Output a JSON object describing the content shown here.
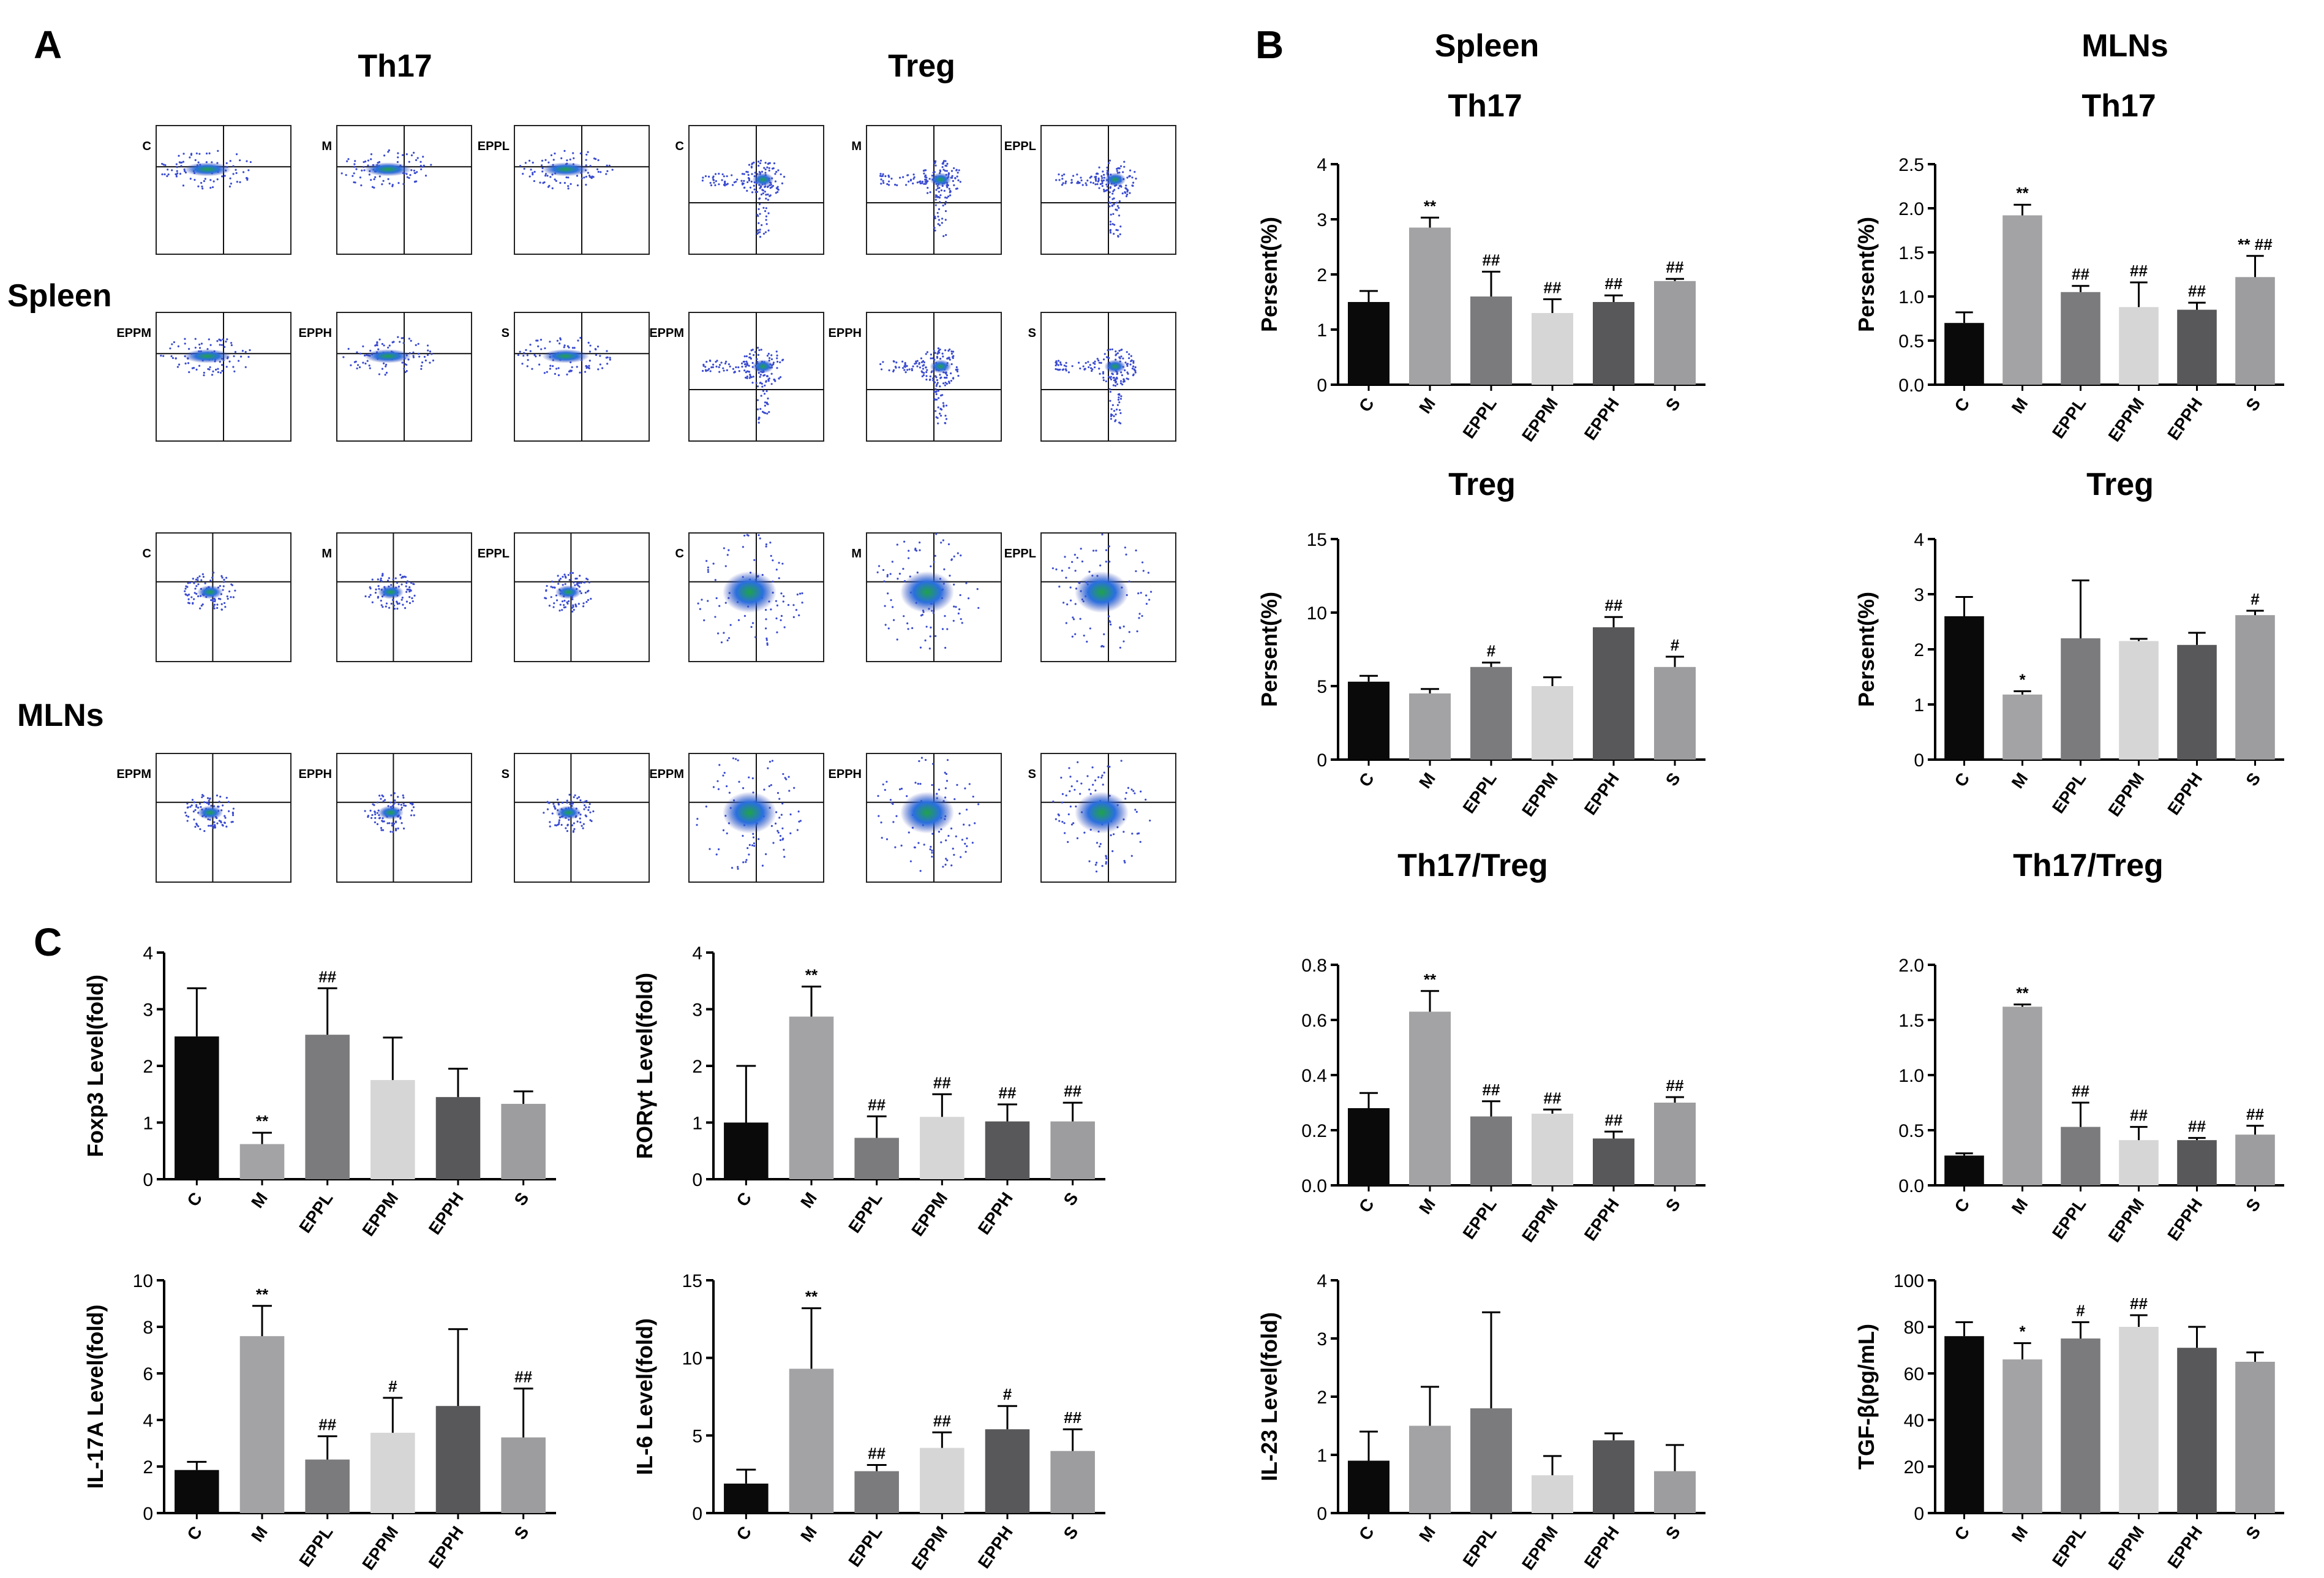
{
  "panel_labels": {
    "a": "A",
    "b": "B",
    "c": "C"
  },
  "panelA": {
    "th17_heading": "Th17",
    "treg_heading": "Treg",
    "spleen_label": "Spleen",
    "mlns_label": "MLNs"
  },
  "panelB": {
    "spleen_heading": "Spleen",
    "mlns_heading": "MLNs"
  },
  "flow_plots": [
    {
      "label": "C"
    },
    {
      "label": "M"
    },
    {
      "label": "EPPL"
    },
    {
      "label": "C"
    },
    {
      "label": "M"
    },
    {
      "label": "EPPL"
    },
    {
      "label": "EPPM"
    },
    {
      "label": "EPPH"
    },
    {
      "label": "S"
    },
    {
      "label": "EPPM"
    },
    {
      "label": "EPPH"
    },
    {
      "label": "S"
    },
    {
      "label": "C"
    },
    {
      "label": "M"
    },
    {
      "label": "EPPL"
    },
    {
      "label": "C"
    },
    {
      "label": "M"
    },
    {
      "label": "EPPL"
    },
    {
      "label": "EPPM"
    },
    {
      "label": "EPPH"
    },
    {
      "label": "S"
    },
    {
      "label": "EPPM"
    },
    {
      "label": "EPPH"
    },
    {
      "label": "S"
    }
  ],
  "colors": {
    "C": "#0a0a0a",
    "M": "#a3a3a5",
    "EPPL": "#7b7b7d",
    "EPPM": "#d6d6d6",
    "EPPH": "#58585a",
    "S": "#9d9d9f"
  },
  "chart_data": [
    {
      "type": "bar",
      "title": "Th17",
      "ylabel": "Persent(%)",
      "ylim": [
        0,
        4
      ],
      "yticks": [
        "0",
        "1",
        "2",
        "3",
        "4"
      ],
      "categories": [
        "C",
        "M",
        "EPPL",
        "EPPM",
        "EPPH",
        "S"
      ],
      "values": [
        1.5,
        2.85,
        1.6,
        1.3,
        1.5,
        1.88
      ],
      "errors": [
        0.2,
        0.18,
        0.45,
        0.25,
        0.12,
        0.04
      ],
      "annotations": [
        "",
        "**",
        "##",
        "##",
        "##",
        "##"
      ]
    },
    {
      "type": "bar",
      "title": "Th17",
      "ylabel": "Persent(%)",
      "ylim": [
        0,
        2.5
      ],
      "yticks": [
        "0.0",
        "0.5",
        "1.0",
        "1.5",
        "2.0",
        "2.5"
      ],
      "categories": [
        "C",
        "M",
        "EPPL",
        "EPPM",
        "EPPH",
        "S"
      ],
      "values": [
        0.7,
        1.92,
        1.05,
        0.88,
        0.85,
        1.22
      ],
      "errors": [
        0.12,
        0.12,
        0.07,
        0.28,
        0.08,
        0.24
      ],
      "annotations": [
        "",
        "**",
        "##",
        "##",
        "##",
        "** ##"
      ]
    },
    {
      "type": "bar",
      "title": "Treg",
      "ylabel": "Persent(%)",
      "ylim": [
        0,
        15
      ],
      "yticks": [
        "0",
        "5",
        "10",
        "15"
      ],
      "categories": [
        "C",
        "M",
        "EPPL",
        "EPPM",
        "EPPH",
        "S"
      ],
      "values": [
        5.3,
        4.5,
        6.3,
        5.0,
        9.0,
        6.3
      ],
      "errors": [
        0.4,
        0.3,
        0.3,
        0.6,
        0.7,
        0.7
      ],
      "annotations": [
        "",
        "",
        "#",
        "",
        "##",
        "#"
      ]
    },
    {
      "type": "bar",
      "title": "Treg",
      "ylabel": "Persent(%)",
      "ylim": [
        0,
        4
      ],
      "yticks": [
        "0",
        "1",
        "2",
        "3",
        "4"
      ],
      "categories": [
        "C",
        "M",
        "EPPL",
        "EPPM",
        "EPPH",
        "S"
      ],
      "values": [
        2.6,
        1.18,
        2.2,
        2.15,
        2.08,
        2.62
      ],
      "errors": [
        0.35,
        0.06,
        1.05,
        0.04,
        0.22,
        0.08
      ],
      "annotations": [
        "",
        "*",
        "",
        "",
        "",
        "#"
      ]
    },
    {
      "type": "bar",
      "title": "Th17/Treg",
      "ylabel": "",
      "ylim": [
        0,
        0.8
      ],
      "yticks": [
        "0.0",
        "0.2",
        "0.4",
        "0.6",
        "0.8"
      ],
      "categories": [
        "C",
        "M",
        "EPPL",
        "EPPM",
        "EPPH",
        "S"
      ],
      "values": [
        0.28,
        0.63,
        0.25,
        0.26,
        0.17,
        0.3
      ],
      "errors": [
        0.055,
        0.075,
        0.055,
        0.015,
        0.025,
        0.02
      ],
      "annotations": [
        "",
        "**",
        "##",
        "##",
        "##",
        "##"
      ]
    },
    {
      "type": "bar",
      "title": "Th17/Treg",
      "ylabel": "",
      "ylim": [
        0,
        2.0
      ],
      "yticks": [
        "0.0",
        "0.5",
        "1.0",
        "1.5",
        "2.0"
      ],
      "categories": [
        "C",
        "M",
        "EPPL",
        "EPPM",
        "EPPH",
        "S"
      ],
      "values": [
        0.27,
        1.62,
        0.53,
        0.41,
        0.41,
        0.46
      ],
      "errors": [
        0.02,
        0.02,
        0.22,
        0.12,
        0.02,
        0.08
      ],
      "annotations": [
        "",
        "**",
        "##",
        "##",
        "##",
        "##"
      ]
    },
    {
      "type": "bar",
      "title": "",
      "ylabel": "Foxp3 Level(fold)",
      "ylim": [
        0,
        4
      ],
      "yticks": [
        "0",
        "1",
        "2",
        "3",
        "4"
      ],
      "categories": [
        "C",
        "M",
        "EPPL",
        "EPPM",
        "EPPH",
        "S"
      ],
      "values": [
        2.52,
        0.62,
        2.55,
        1.75,
        1.45,
        1.33
      ],
      "errors": [
        0.85,
        0.2,
        0.82,
        0.75,
        0.5,
        0.22
      ],
      "annotations": [
        "",
        "**",
        "##",
        "",
        "",
        ""
      ]
    },
    {
      "type": "bar",
      "title": "",
      "ylabel": "RORγt Level(fold)",
      "ylim": [
        0,
        4
      ],
      "yticks": [
        "0",
        "1",
        "2",
        "3",
        "4"
      ],
      "categories": [
        "C",
        "M",
        "EPPL",
        "EPPM",
        "EPPH",
        "S"
      ],
      "values": [
        1.0,
        2.87,
        0.73,
        1.1,
        1.02,
        1.02
      ],
      "errors": [
        1.0,
        0.53,
        0.38,
        0.4,
        0.3,
        0.33
      ],
      "annotations": [
        "",
        "**",
        "##",
        "##",
        "##",
        "##"
      ]
    },
    {
      "type": "bar",
      "title": "",
      "ylabel": "IL-17A Level(fold)",
      "ylim": [
        0,
        10
      ],
      "yticks": [
        "0",
        "2",
        "4",
        "6",
        "8",
        "10"
      ],
      "categories": [
        "C",
        "M",
        "EPPL",
        "EPPM",
        "EPPH",
        "S"
      ],
      "values": [
        1.85,
        7.6,
        2.3,
        3.45,
        4.6,
        3.25
      ],
      "errors": [
        0.35,
        1.3,
        1.0,
        1.5,
        3.3,
        2.1
      ],
      "annotations": [
        "",
        "**",
        "##",
        "#",
        "",
        "##"
      ]
    },
    {
      "type": "bar",
      "title": "",
      "ylabel": "IL-6 Level(fold)",
      "ylim": [
        0,
        15
      ],
      "yticks": [
        "0",
        "5",
        "10",
        "15"
      ],
      "categories": [
        "C",
        "M",
        "EPPL",
        "EPPM",
        "EPPH",
        "S"
      ],
      "values": [
        1.9,
        9.3,
        2.7,
        4.2,
        5.4,
        4.0
      ],
      "errors": [
        0.9,
        3.9,
        0.4,
        1.0,
        1.5,
        1.4
      ],
      "annotations": [
        "",
        "**",
        "##",
        "##",
        "#",
        "##"
      ]
    },
    {
      "type": "bar",
      "title": "",
      "ylabel": "IL-23 Level(fold)",
      "ylim": [
        0,
        4
      ],
      "yticks": [
        "0",
        "1",
        "2",
        "3",
        "4"
      ],
      "categories": [
        "C",
        "M",
        "EPPL",
        "EPPM",
        "EPPH",
        "S"
      ],
      "values": [
        0.9,
        1.5,
        1.8,
        0.65,
        1.25,
        0.72
      ],
      "errors": [
        0.5,
        0.67,
        1.65,
        0.33,
        0.12,
        0.45
      ],
      "annotations": [
        "",
        "",
        "",
        "",
        "",
        ""
      ]
    },
    {
      "type": "bar",
      "title": "",
      "ylabel": "TGF-β(pg/mL)",
      "ylim": [
        0,
        100
      ],
      "yticks": [
        "0",
        "20",
        "40",
        "60",
        "80",
        "100"
      ],
      "categories": [
        "C",
        "M",
        "EPPL",
        "EPPM",
        "EPPH",
        "S"
      ],
      "values": [
        76,
        66,
        75,
        80,
        71,
        65
      ],
      "errors": [
        6,
        7,
        7,
        5,
        9,
        4
      ],
      "annotations": [
        "",
        "*",
        "#",
        "##",
        "",
        ""
      ]
    }
  ]
}
